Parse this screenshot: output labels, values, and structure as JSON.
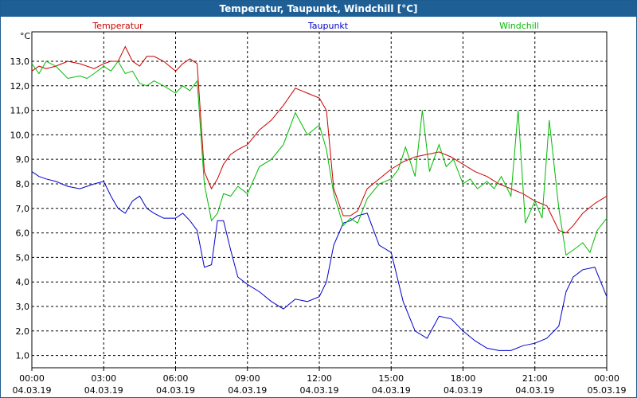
{
  "title": "Temperatur, Taupunkt, Windchill [°C]",
  "chart_data": {
    "type": "line",
    "title": "Temperatur, Taupunkt, Windchill [°C]",
    "ylabel": "°C",
    "ylim": [
      0.5,
      14.2
    ],
    "y_ticks": [
      1,
      2,
      3,
      4,
      5,
      6,
      7,
      8,
      9,
      10,
      11,
      12,
      13
    ],
    "y_tick_labels": [
      "1,0",
      "2,0",
      "3,0",
      "4,0",
      "5,0",
      "6,0",
      "7,0",
      "8,0",
      "9,0",
      "10,0",
      "11,0",
      "12,0",
      "13,0"
    ],
    "xlim": [
      0,
      24
    ],
    "x_ticks": [
      0,
      3,
      6,
      9,
      12,
      15,
      18,
      21,
      24
    ],
    "x_tick_labels": [
      {
        "time": "00:00",
        "date": "04.03.19"
      },
      {
        "time": "03:00",
        "date": "04.03.19"
      },
      {
        "time": "06:00",
        "date": "04.03.19"
      },
      {
        "time": "09:00",
        "date": "04.03.19"
      },
      {
        "time": "12:00",
        "date": "04.03.19"
      },
      {
        "time": "15:00",
        "date": "04.03.19"
      },
      {
        "time": "18:00",
        "date": "04.03.19"
      },
      {
        "time": "21:00",
        "date": "04.03.19"
      },
      {
        "time": "00:00",
        "date": "05.03.19"
      }
    ],
    "grid": true,
    "series": [
      {
        "name": "Temperatur",
        "color": "#cc0000",
        "x": [
          0,
          0.3,
          0.6,
          1,
          1.5,
          2,
          2.3,
          2.6,
          3,
          3.3,
          3.6,
          3.9,
          4.2,
          4.5,
          4.8,
          5.1,
          5.5,
          6,
          6.3,
          6.6,
          6.9,
          7.2,
          7.5,
          7.75,
          8,
          8.3,
          8.6,
          9,
          9.5,
          10,
          10.5,
          11,
          11.5,
          12,
          12.3,
          12.6,
          13,
          13.3,
          13.6,
          14,
          14.5,
          15,
          15.5,
          16,
          16.5,
          17,
          17.5,
          18,
          18.5,
          19,
          19.5,
          20,
          20.5,
          21,
          21.5,
          22,
          22.3,
          22.6,
          23,
          23.5,
          24
        ],
        "values": [
          12.6,
          12.8,
          12.7,
          12.8,
          13.0,
          12.9,
          12.8,
          12.7,
          12.9,
          13.0,
          13.0,
          13.6,
          13.0,
          12.8,
          13.2,
          13.2,
          13.0,
          12.6,
          12.9,
          13.1,
          12.9,
          8.5,
          7.8,
          8.2,
          8.8,
          9.2,
          9.4,
          9.6,
          10.2,
          10.6,
          11.2,
          11.9,
          11.7,
          11.5,
          11.0,
          7.8,
          6.7,
          6.7,
          6.9,
          7.8,
          8.2,
          8.6,
          8.9,
          9.1,
          9.2,
          9.3,
          9.1,
          8.8,
          8.5,
          8.3,
          8.0,
          7.8,
          7.6,
          7.3,
          7.1,
          6.1,
          6.0,
          6.3,
          6.8,
          7.2,
          7.5
        ]
      },
      {
        "name": "Taupunkt",
        "color": "#0000cc",
        "x": [
          0,
          0.3,
          0.6,
          1,
          1.5,
          2,
          2.3,
          2.6,
          3,
          3.3,
          3.6,
          3.9,
          4.2,
          4.5,
          4.8,
          5.1,
          5.5,
          6,
          6.3,
          6.6,
          6.9,
          7.2,
          7.5,
          7.75,
          8,
          8.3,
          8.6,
          9,
          9.5,
          10,
          10.5,
          11,
          11.5,
          12,
          12.3,
          12.6,
          13,
          13.3,
          13.6,
          14,
          14.5,
          15,
          15.5,
          16,
          16.5,
          17,
          17.5,
          18,
          18.5,
          19,
          19.5,
          20,
          20.5,
          21,
          21.5,
          22,
          22.3,
          22.6,
          23,
          23.5,
          24
        ],
        "values": [
          8.5,
          8.3,
          8.2,
          8.1,
          7.9,
          7.8,
          7.9,
          8.0,
          8.1,
          7.5,
          7.0,
          6.8,
          7.3,
          7.5,
          7.0,
          6.8,
          6.6,
          6.6,
          6.8,
          6.5,
          6.1,
          4.6,
          4.7,
          6.5,
          6.5,
          5.3,
          4.2,
          3.9,
          3.6,
          3.2,
          2.9,
          3.3,
          3.2,
          3.4,
          4.0,
          5.5,
          6.4,
          6.5,
          6.7,
          6.8,
          5.5,
          5.2,
          3.2,
          2.0,
          1.7,
          2.6,
          2.5,
          2.0,
          1.6,
          1.3,
          1.2,
          1.2,
          1.4,
          1.5,
          1.7,
          2.2,
          3.6,
          4.2,
          4.5,
          4.6,
          3.4
        ]
      },
      {
        "name": "Windchill",
        "color": "#00bb00",
        "x": [
          0,
          0.3,
          0.6,
          1,
          1.5,
          2,
          2.3,
          2.6,
          3,
          3.3,
          3.6,
          3.9,
          4.2,
          4.5,
          4.8,
          5.1,
          5.5,
          6,
          6.3,
          6.6,
          6.9,
          7.2,
          7.5,
          7.75,
          8,
          8.3,
          8.6,
          9,
          9.5,
          10,
          10.5,
          11,
          11.5,
          12,
          12.3,
          12.6,
          13,
          13.3,
          13.6,
          14,
          14.5,
          15,
          15.3,
          15.6,
          16,
          16.3,
          16.6,
          17,
          17.3,
          17.6,
          18,
          18.3,
          18.6,
          19,
          19.3,
          19.6,
          20,
          20.3,
          20.6,
          21,
          21.3,
          21.6,
          22,
          22.3,
          22.6,
          23,
          23.3,
          23.6,
          24
        ],
        "values": [
          12.9,
          12.5,
          13.0,
          12.8,
          12.3,
          12.4,
          12.3,
          12.5,
          12.8,
          12.6,
          13.0,
          12.5,
          12.6,
          12.1,
          12.0,
          12.2,
          12.0,
          11.7,
          12.0,
          11.8,
          12.2,
          8.0,
          6.5,
          6.8,
          7.6,
          7.5,
          7.9,
          7.6,
          8.7,
          9.0,
          9.6,
          10.9,
          10.0,
          10.4,
          9.4,
          7.6,
          6.3,
          6.6,
          6.4,
          7.4,
          8.0,
          8.2,
          8.6,
          9.5,
          8.3,
          11.0,
          8.5,
          9.6,
          8.7,
          9.0,
          8.0,
          8.2,
          7.8,
          8.1,
          7.8,
          8.3,
          7.5,
          11.0,
          6.4,
          7.3,
          6.6,
          10.6,
          7.0,
          5.1,
          5.3,
          5.6,
          5.2,
          6.1,
          6.6
        ]
      }
    ],
    "legend": [
      "Temperatur",
      "Taupunkt",
      "Windchill"
    ],
    "legend_position": "top"
  }
}
